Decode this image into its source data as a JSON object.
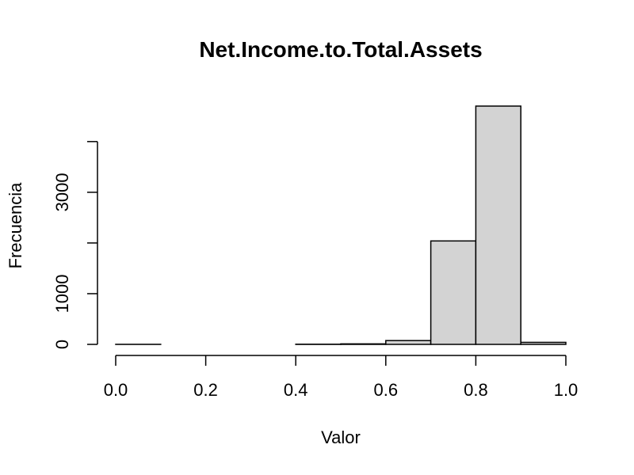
{
  "chart_data": {
    "type": "bar",
    "subtype": "histogram",
    "title": "Net.Income.to.Total.Assets",
    "xlabel": "Valor",
    "ylabel": "Frecuencia",
    "bin_edges": [
      0.0,
      0.1,
      0.2,
      0.3,
      0.4,
      0.5,
      0.6,
      0.7,
      0.8,
      0.9,
      1.0
    ],
    "values": [
      1,
      0,
      0,
      0,
      3,
      10,
      75,
      2040,
      4700,
      40
    ],
    "xlim": [
      0,
      1
    ],
    "ylim": [
      0,
      4700
    ],
    "x_ticks": [
      0.0,
      0.2,
      0.4,
      0.6,
      0.8,
      1.0
    ],
    "x_tick_labels": [
      "0.0",
      "0.2",
      "0.4",
      "0.6",
      "0.8",
      "1.0"
    ],
    "y_ticks": [
      0,
      1000,
      2000,
      3000,
      4000
    ],
    "y_tick_labels": [
      "0",
      "1000",
      "",
      "3000",
      ""
    ],
    "bar_color": "#d3d3d3",
    "grid": false,
    "legend": "none"
  }
}
